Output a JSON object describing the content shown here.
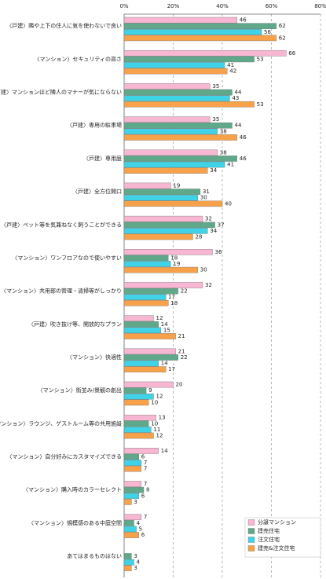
{
  "chart_data": {
    "type": "bar",
    "orientation": "horizontal",
    "categories": [
      "〈戸建〉隣や上下の住人に気を使わないで良い",
      "〈マンション〉セキュリティの高さ",
      "〈戸建〉マンションほど隣人のマナーが気にならない",
      "〈戸建〉専用の駐車場",
      "〈戸建〉専用庭",
      "〈戸建〉全方位開口",
      "〈戸建〉ペット等を気兼ねなく飼うことができる",
      "〈マンション〉ワンフロアなので使いやすい",
      "〈マンション〉共用部の管理・清掃等がしっかり",
      "〈戸建〉吹き抜け等、開放的なプラン",
      "〈マンション〉快適性",
      "〈マンション〉街並み/景観の創出",
      "〈マンション〉ラウンジ、ゲストルーム等の共用施設",
      "〈マンション〉自分好みにカスタマイズできる",
      "〈マンション〉購入時のカラーセレクト",
      "〈マンション〉規模感のある中庭空間",
      "あてはまるものはない"
    ],
    "series": [
      {
        "name": "分譲マンション",
        "color": "#f7b6d2",
        "values": [
          46,
          66,
          35,
          35,
          38,
          19,
          32,
          36,
          32,
          12,
          21,
          20,
          13,
          14,
          7,
          7,
          null
        ]
      },
      {
        "name": "建売住宅",
        "color": "#5fa98a",
        "values": [
          62,
          53,
          44,
          44,
          46,
          31,
          37,
          18,
          22,
          14,
          22,
          9,
          10,
          6,
          8,
          4,
          3
        ]
      },
      {
        "name": "注文住宅",
        "color": "#40d2e6",
        "values": [
          56,
          41,
          43,
          38,
          41,
          30,
          34,
          19,
          17,
          15,
          14,
          12,
          11,
          7,
          6,
          5,
          4
        ]
      },
      {
        "name": "建売&注文住宅",
        "color": "#f7a24a",
        "values": [
          62,
          42,
          53,
          46,
          34,
          40,
          28,
          30,
          18,
          21,
          17,
          10,
          12,
          7,
          3,
          6,
          3
        ]
      }
    ],
    "xlim": [
      0,
      80
    ],
    "xticks": [
      {
        "value": 0,
        "label": "0%"
      },
      {
        "value": 20,
        "label": "20%"
      },
      {
        "value": 40,
        "label": "40%"
      },
      {
        "value": 60,
        "label": "60%"
      },
      {
        "value": 80,
        "label": "80%"
      }
    ],
    "grid": true,
    "legend": "bottom-right"
  }
}
